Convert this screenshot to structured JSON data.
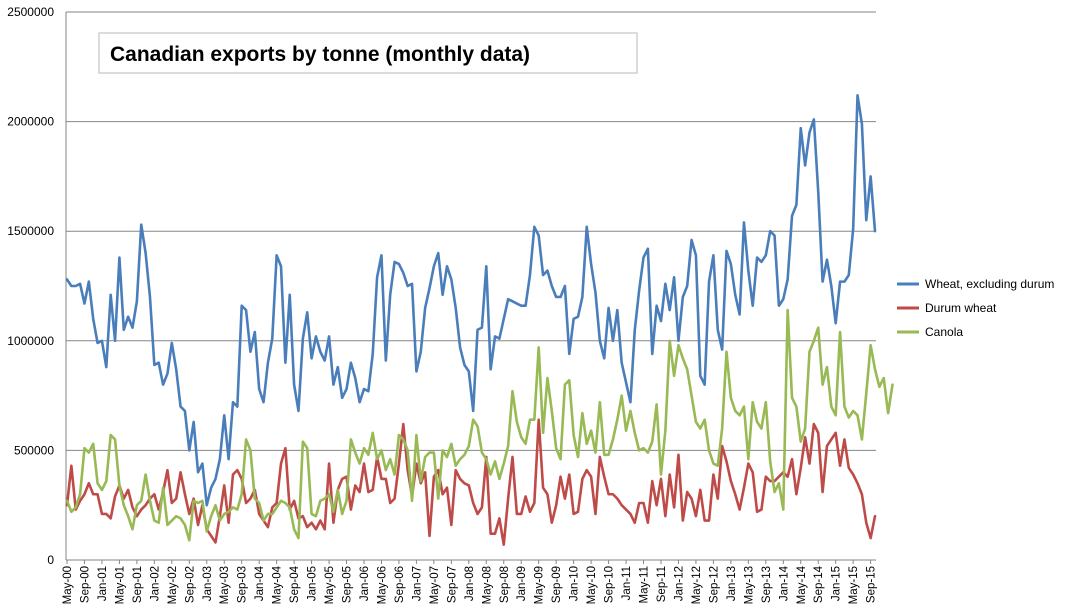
{
  "chart_data": {
    "type": "line",
    "title": "Canadian exports by tonne (monthly data)",
    "xlabel": "",
    "ylabel": "",
    "ylim": [
      0,
      2500000
    ],
    "yticks": [
      "0",
      "500000",
      "1000000",
      "1500000",
      "2000000",
      "2500000"
    ],
    "ytick_values": [
      0,
      500000,
      1000000,
      1500000,
      2000000,
      2500000
    ],
    "x_labels": [
      "May-00",
      "Sep-00",
      "Jan-01",
      "May-01",
      "Sep-01",
      "Jan-02",
      "May-02",
      "Sep-02",
      "Jan-03",
      "May-03",
      "Sep-03",
      "Jan-04",
      "May-04",
      "Sep-04",
      "Jan-05",
      "May-05",
      "Sep-05",
      "Jan-06",
      "May-06",
      "Sep-06",
      "Jan-07",
      "May-07",
      "Sep-07",
      "Jan-08",
      "May-08",
      "Sep-08",
      "Jan-09",
      "May-09",
      "Sep-09",
      "Jan-10",
      "May-10",
      "Sep-10",
      "Jan-11",
      "May-11",
      "Sep-11",
      "Jan-12",
      "May-12",
      "Sep-12",
      "Jan-13",
      "May-13",
      "Sep-13",
      "Jan-14",
      "May-14",
      "Sep-14",
      "Jan-15",
      "May-15",
      "Sep-15"
    ],
    "grid": true,
    "legend_position": "right",
    "series": [
      {
        "name": "Wheat, excluding durum",
        "color": "#4a7ebb",
        "values": [
          1280000,
          1250000,
          1250000,
          1260000,
          1170000,
          1270000,
          1100000,
          990000,
          1000000,
          880000,
          1210000,
          1000000,
          1380000,
          1050000,
          1110000,
          1060000,
          1180000,
          1530000,
          1400000,
          1200000,
          890000,
          900000,
          800000,
          850000,
          990000,
          870000,
          700000,
          680000,
          500000,
          630000,
          400000,
          440000,
          250000,
          330000,
          370000,
          460000,
          660000,
          460000,
          720000,
          700000,
          1160000,
          1140000,
          950000,
          1040000,
          780000,
          720000,
          900000,
          1010000,
          1390000,
          1340000,
          900000,
          1210000,
          800000,
          680000,
          1010000,
          1130000,
          920000,
          1020000,
          950000,
          910000,
          1020000,
          800000,
          880000,
          740000,
          780000,
          900000,
          830000,
          720000,
          780000,
          770000,
          940000,
          1290000,
          1390000,
          910000,
          1210000,
          1360000,
          1350000,
          1310000,
          1250000,
          1260000,
          860000,
          950000,
          1150000,
          1240000,
          1340000,
          1400000,
          1210000,
          1340000,
          1280000,
          1150000,
          970000,
          890000,
          860000,
          680000,
          1050000,
          1060000,
          1340000,
          870000,
          1020000,
          1010000,
          1100000,
          1190000,
          1180000,
          1170000,
          1160000,
          1160000,
          1300000,
          1520000,
          1480000,
          1300000,
          1320000,
          1250000,
          1200000,
          1200000,
          1250000,
          940000,
          1100000,
          1110000,
          1200000,
          1520000,
          1350000,
          1220000,
          1000000,
          920000,
          1150000,
          1000000,
          1140000,
          900000,
          810000,
          720000,
          1050000,
          1230000,
          1380000,
          1420000,
          940000,
          1160000,
          1090000,
          1260000,
          1140000,
          1290000,
          1000000,
          1200000,
          1250000,
          1460000,
          1390000,
          840000,
          800000,
          1270000,
          1390000,
          1050000,
          960000,
          1410000,
          1350000,
          1210000,
          1120000,
          1540000,
          1320000,
          1160000,
          1380000,
          1360000,
          1390000,
          1500000,
          1480000,
          1160000,
          1190000,
          1280000,
          1570000,
          1620000,
          1970000,
          1800000,
          1950000,
          2010000,
          1680000,
          1270000,
          1370000,
          1250000,
          1080000,
          1270000,
          1270000,
          1300000,
          1510000,
          2120000,
          1990000,
          1550000,
          1750000,
          1500000
        ]
      },
      {
        "name": "Durum wheat",
        "color": "#be4b48",
        "values": [
          250000,
          430000,
          230000,
          270000,
          300000,
          350000,
          300000,
          300000,
          210000,
          210000,
          190000,
          290000,
          340000,
          280000,
          320000,
          240000,
          200000,
          230000,
          250000,
          280000,
          300000,
          230000,
          310000,
          410000,
          260000,
          280000,
          400000,
          300000,
          210000,
          280000,
          160000,
          250000,
          140000,
          110000,
          80000,
          200000,
          340000,
          170000,
          390000,
          410000,
          370000,
          260000,
          280000,
          320000,
          210000,
          180000,
          150000,
          240000,
          260000,
          440000,
          510000,
          230000,
          270000,
          190000,
          200000,
          150000,
          170000,
          140000,
          180000,
          140000,
          440000,
          170000,
          320000,
          370000,
          380000,
          230000,
          340000,
          310000,
          440000,
          310000,
          320000,
          470000,
          370000,
          370000,
          260000,
          280000,
          440000,
          620000,
          410000,
          290000,
          440000,
          350000,
          400000,
          110000,
          380000,
          410000,
          300000,
          330000,
          160000,
          410000,
          370000,
          350000,
          340000,
          260000,
          210000,
          240000,
          470000,
          120000,
          120000,
          190000,
          70000,
          280000,
          470000,
          210000,
          210000,
          290000,
          220000,
          260000,
          640000,
          330000,
          300000,
          170000,
          250000,
          380000,
          280000,
          390000,
          210000,
          220000,
          370000,
          410000,
          380000,
          210000,
          470000,
          380000,
          300000,
          300000,
          280000,
          250000,
          230000,
          210000,
          170000,
          260000,
          260000,
          170000,
          360000,
          250000,
          370000,
          200000,
          390000,
          240000,
          480000,
          180000,
          310000,
          280000,
          200000,
          320000,
          180000,
          180000,
          390000,
          280000,
          520000,
          450000,
          360000,
          300000,
          230000,
          330000,
          440000,
          400000,
          220000,
          230000,
          380000,
          360000,
          360000,
          380000,
          400000,
          380000,
          460000,
          300000,
          420000,
          560000,
          440000,
          620000,
          580000,
          310000,
          520000,
          550000,
          580000,
          430000,
          550000,
          420000,
          390000,
          350000,
          300000,
          170000,
          100000,
          200000
        ]
      },
      {
        "name": "Canola",
        "color": "#98b954",
        "values": [
          270000,
          220000,
          240000,
          300000,
          510000,
          490000,
          530000,
          350000,
          320000,
          360000,
          570000,
          550000,
          340000,
          250000,
          200000,
          140000,
          250000,
          270000,
          390000,
          270000,
          180000,
          170000,
          330000,
          160000,
          180000,
          200000,
          190000,
          160000,
          90000,
          270000,
          260000,
          270000,
          130000,
          200000,
          250000,
          180000,
          210000,
          220000,
          240000,
          230000,
          300000,
          550000,
          500000,
          280000,
          260000,
          180000,
          210000,
          210000,
          240000,
          270000,
          260000,
          240000,
          140000,
          100000,
          540000,
          510000,
          210000,
          200000,
          270000,
          280000,
          300000,
          220000,
          320000,
          210000,
          270000,
          550000,
          490000,
          440000,
          510000,
          480000,
          580000,
          460000,
          500000,
          410000,
          460000,
          390000,
          570000,
          550000,
          500000,
          270000,
          570000,
          360000,
          470000,
          490000,
          490000,
          280000,
          500000,
          470000,
          530000,
          430000,
          460000,
          480000,
          520000,
          640000,
          610000,
          490000,
          460000,
          390000,
          450000,
          370000,
          440000,
          520000,
          770000,
          630000,
          560000,
          530000,
          640000,
          640000,
          970000,
          580000,
          830000,
          680000,
          510000,
          460000,
          800000,
          820000,
          570000,
          470000,
          670000,
          530000,
          590000,
          490000,
          720000,
          480000,
          480000,
          550000,
          640000,
          750000,
          590000,
          680000,
          580000,
          500000,
          510000,
          490000,
          540000,
          710000,
          390000,
          590000,
          1000000,
          840000,
          980000,
          920000,
          870000,
          750000,
          630000,
          600000,
          640000,
          500000,
          440000,
          430000,
          600000,
          950000,
          740000,
          680000,
          660000,
          700000,
          460000,
          720000,
          630000,
          600000,
          720000,
          450000,
          310000,
          350000,
          230000,
          1140000,
          740000,
          700000,
          540000,
          600000,
          950000,
          1000000,
          1060000,
          800000,
          880000,
          700000,
          660000,
          1040000,
          700000,
          650000,
          680000,
          660000,
          550000,
          760000,
          980000,
          870000,
          790000,
          830000,
          670000,
          800000
        ]
      }
    ]
  }
}
